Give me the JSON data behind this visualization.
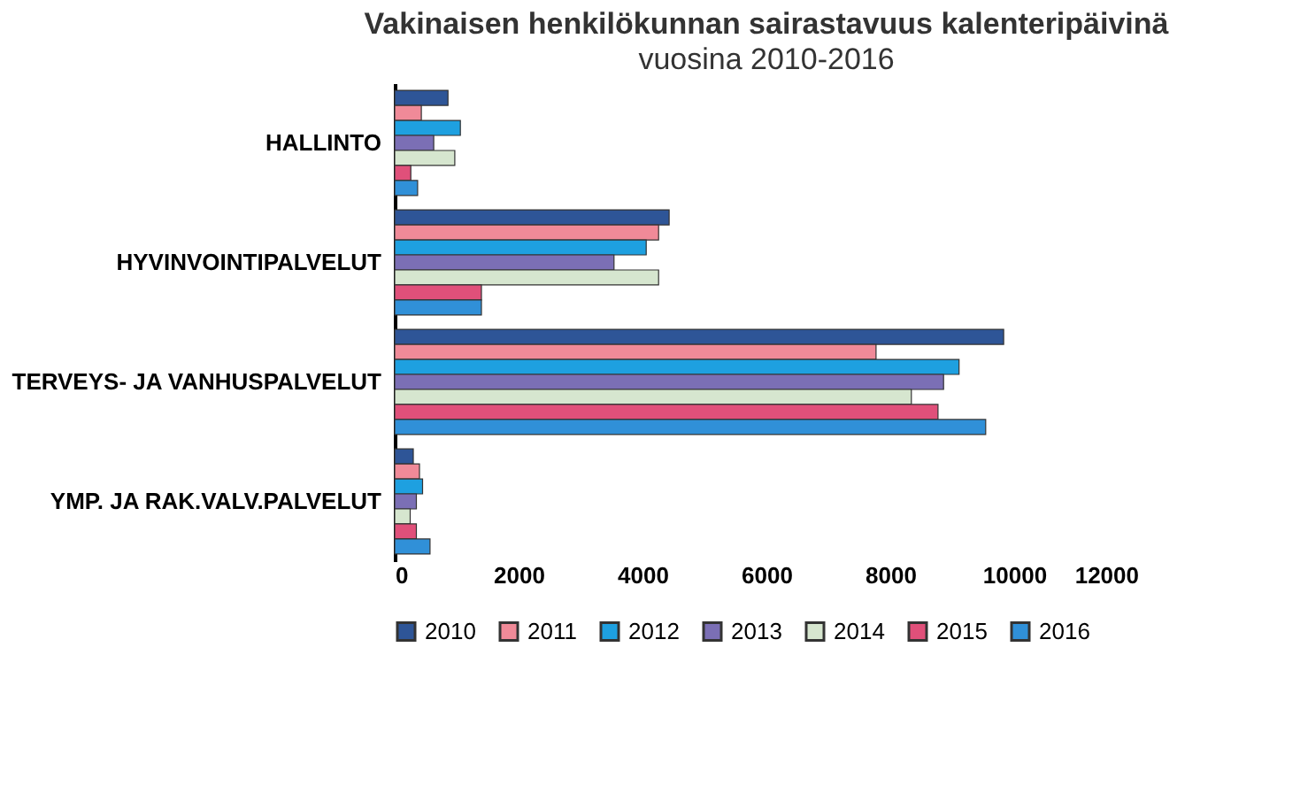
{
  "chart_data": {
    "type": "bar",
    "orientation": "horizontal",
    "title": "Vakinaisen henkilökunnan sairastavuus kalenteripäivinä",
    "subtitle": "vuosina 2010-2016",
    "categories": [
      "HALLINTO",
      "HYVINVOINTIPALVELUT",
      "TERVEYS- JA VANHUSPALVELUT",
      "YMP. JA RAK.VALV.PALVELUT"
    ],
    "series": [
      {
        "name": "2010",
        "color": "#2e5597",
        "values": [
          860,
          4430,
          9830,
          300
        ]
      },
      {
        "name": "2011",
        "color": "#f08a98",
        "values": [
          430,
          4260,
          7770,
          400
        ]
      },
      {
        "name": "2012",
        "color": "#1ea0e0",
        "values": [
          1060,
          4060,
          9110,
          450
        ]
      },
      {
        "name": "2013",
        "color": "#7b6fb5",
        "values": [
          630,
          3540,
          8860,
          350
        ]
      },
      {
        "name": "2014",
        "color": "#d6e6cf",
        "values": [
          970,
          4260,
          8340,
          250
        ]
      },
      {
        "name": "2015",
        "color": "#e0507a",
        "values": [
          260,
          1400,
          8770,
          350
        ]
      },
      {
        "name": "2016",
        "color": "#3090d8",
        "values": [
          370,
          1400,
          9540,
          570
        ]
      }
    ],
    "xlim": [
      0,
      12000
    ],
    "xticks": [
      0,
      2000,
      4000,
      6000,
      8000,
      10000,
      12000
    ],
    "grid": false,
    "legend": "bottom"
  }
}
